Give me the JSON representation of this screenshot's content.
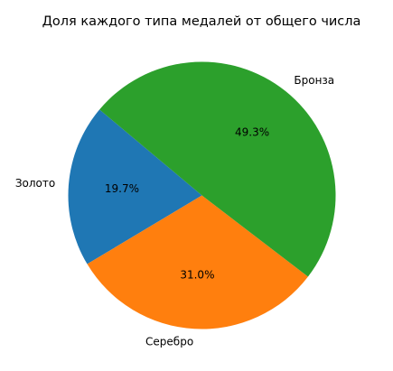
{
  "chart_data": {
    "type": "pie",
    "title": "Доля каждого типа медалей от общего числа",
    "start_angle_deg": 140,
    "direction": "counterclockwise",
    "slices": [
      {
        "label": "Золото",
        "value": 19.7,
        "pct_label": "19.7%",
        "color": "#1f77b4"
      },
      {
        "label": "Серебро",
        "value": 31.0,
        "pct_label": "31.0%",
        "color": "#ff7f0e"
      },
      {
        "label": "Бронза",
        "value": 49.3,
        "pct_label": "49.3%",
        "color": "#2ca02c"
      }
    ]
  }
}
